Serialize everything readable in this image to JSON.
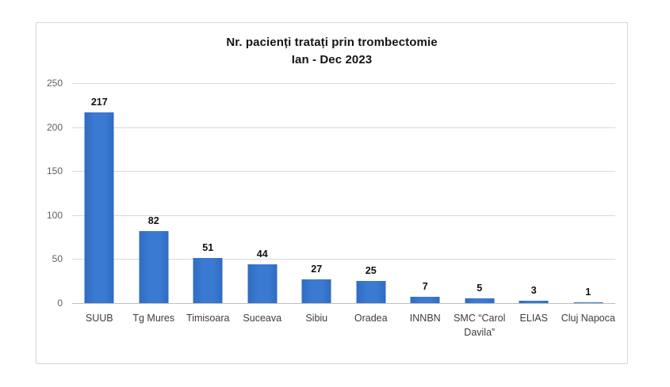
{
  "title": {
    "line1": "Nr. pacienți tratați prin trombectomie",
    "line2": "Ian - Dec 2023"
  },
  "chart_data": {
    "type": "bar",
    "title": "Nr. pacienți tratați prin trombectomie Ian - Dec 2023",
    "categories": [
      "SUUB",
      "Tg Mures",
      "Timisoara",
      "Suceava",
      "Sibiu",
      "Oradea",
      "INNBN",
      "SMC “Carol Davila”",
      "ELIAS",
      "Cluj Napoca"
    ],
    "values": [
      217,
      82,
      51,
      44,
      27,
      25,
      7,
      5,
      3,
      1
    ],
    "xlabel": "",
    "ylabel": "",
    "ylim": [
      0,
      250
    ],
    "yticks": [
      0,
      50,
      100,
      150,
      200,
      250
    ],
    "grid": true,
    "legend": false,
    "bar_color": "#3574CB",
    "gridline_color": "#d9d9d9",
    "axis_line_color": "#bfbfbf",
    "tick_label_color": "#5f5f5f",
    "category_label_color": "#3d3d3d",
    "value_label_color": "#111111",
    "frame_border_color": "#d6d6d6"
  }
}
